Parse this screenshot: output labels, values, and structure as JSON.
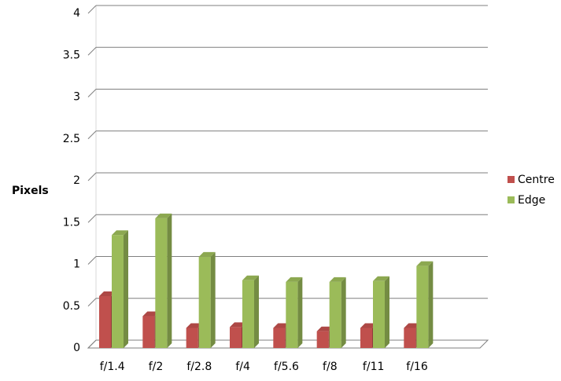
{
  "chart_data": {
    "type": "bar3d",
    "y_label": "Pixels",
    "categories": [
      "f/1.4",
      "f/2",
      "f/2.8",
      "f/4",
      "f/5.6",
      "f/8",
      "f/11",
      "f/16"
    ],
    "series": [
      {
        "name": "Centre",
        "color": "#c0504d",
        "values": [
          0.62,
          0.38,
          0.24,
          0.25,
          0.24,
          0.2,
          0.24,
          0.24
        ]
      },
      {
        "name": "Edge",
        "color": "#9bbb59",
        "values": [
          1.35,
          1.55,
          1.09,
          0.81,
          0.79,
          0.79,
          0.8,
          0.98
        ]
      }
    ],
    "ylim": [
      0,
      4
    ],
    "yticks": [
      0,
      0.5,
      1,
      1.5,
      2,
      2.5,
      3,
      3.5,
      4
    ],
    "grid": true,
    "legend": "right"
  }
}
